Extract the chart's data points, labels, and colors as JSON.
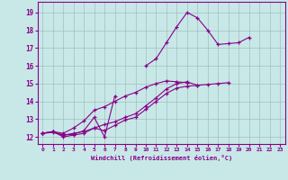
{
  "background_color": "#c8e8e8",
  "plot_bg_color": "#c8e8e8",
  "grid_color": "#a0c0c0",
  "line_color": "#880088",
  "xlim": [
    -0.5,
    23.5
  ],
  "ylim": [
    11.6,
    19.6
  ],
  "xtick_labels": [
    "0",
    "1",
    "2",
    "3",
    "4",
    "5",
    "6",
    "7",
    "8",
    "9",
    "10",
    "11",
    "12",
    "13",
    "14",
    "15",
    "16",
    "17",
    "18",
    "19",
    "20",
    "21",
    "22",
    "23"
  ],
  "xtick_vals": [
    0,
    1,
    2,
    3,
    4,
    5,
    6,
    7,
    8,
    9,
    10,
    11,
    12,
    13,
    14,
    15,
    16,
    17,
    18,
    19,
    20,
    21,
    22,
    23
  ],
  "ytick_vals": [
    12,
    13,
    14,
    15,
    16,
    17,
    18,
    19
  ],
  "xlabel": "Windchill (Refroidissement éolien,°C)",
  "series": [
    {
      "x": [
        0,
        1,
        2,
        3,
        4,
        5,
        6,
        7,
        8,
        9,
        10,
        11,
        12,
        13,
        14,
        15,
        16,
        17,
        18,
        19,
        20,
        21,
        22,
        23
      ],
      "y": [
        12.2,
        12.25,
        12.1,
        12.2,
        12.3,
        12.5,
        12.35,
        12.65,
        12.95,
        13.1,
        13.55,
        14.0,
        14.45,
        14.75,
        14.85,
        14.9,
        14.95,
        15.0,
        15.05,
        null,
        null,
        null,
        null,
        null
      ]
    },
    {
      "x": [
        0,
        1,
        2,
        3,
        4,
        5,
        6,
        7,
        8,
        9,
        10,
        11,
        12,
        13,
        14,
        15,
        16,
        17,
        18,
        19,
        20,
        21,
        22,
        23
      ],
      "y": [
        12.2,
        12.3,
        12.1,
        12.15,
        12.35,
        13.1,
        12.0,
        14.3,
        null,
        null,
        16.0,
        16.4,
        17.3,
        18.2,
        19.0,
        18.7,
        18.0,
        17.2,
        17.25,
        17.3,
        17.6,
        null,
        null,
        null
      ]
    },
    {
      "x": [
        0,
        1,
        2,
        3,
        4,
        5,
        6,
        7,
        8,
        9,
        10,
        11,
        12,
        13,
        14,
        15,
        16,
        17,
        18,
        19,
        20,
        21,
        22,
        23
      ],
      "y": [
        12.2,
        12.3,
        12.0,
        12.1,
        12.2,
        12.5,
        12.7,
        12.85,
        13.1,
        13.3,
        13.75,
        14.2,
        14.7,
        15.0,
        15.1,
        14.9,
        null,
        null,
        null,
        null,
        null,
        null,
        null,
        null
      ]
    },
    {
      "x": [
        0,
        1,
        2,
        3,
        4,
        5,
        6,
        7,
        8,
        9,
        10,
        11,
        12,
        13,
        14,
        15,
        16,
        17,
        18,
        19,
        20,
        21,
        22,
        23
      ],
      "y": [
        12.2,
        12.3,
        12.2,
        12.5,
        12.9,
        13.5,
        13.7,
        14.0,
        14.3,
        14.5,
        14.8,
        15.0,
        15.15,
        15.1,
        15.05,
        null,
        null,
        null,
        null,
        null,
        null,
        null,
        null,
        null
      ]
    }
  ]
}
